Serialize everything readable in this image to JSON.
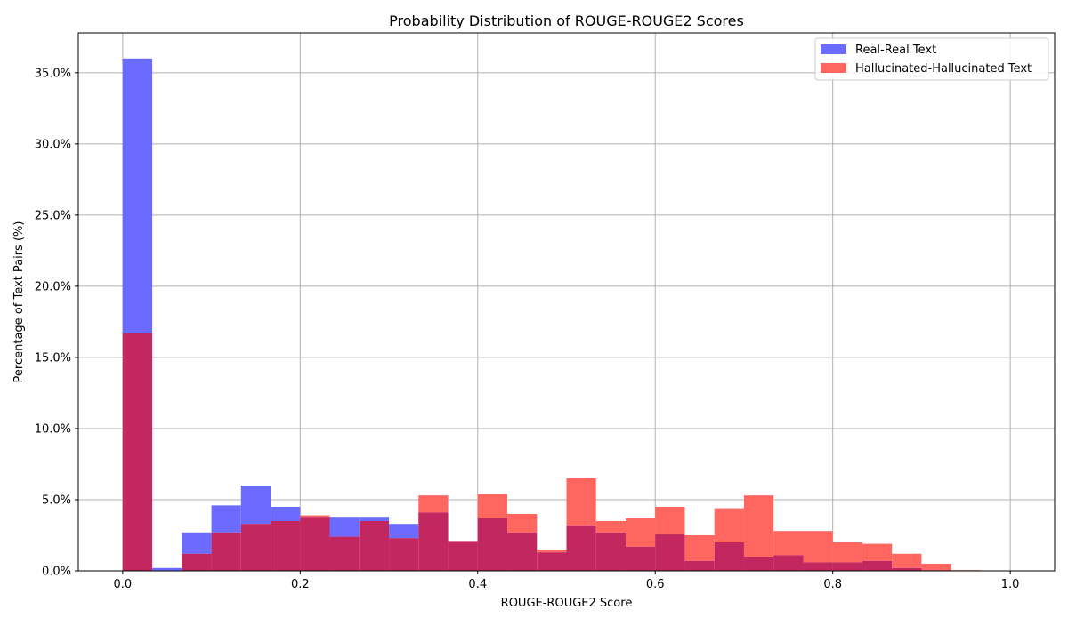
{
  "chart_data": {
    "type": "bar",
    "subtype": "overlapping-histogram",
    "title": "Probability Distribution of ROUGE-ROUGE2 Scores",
    "xlabel": "ROUGE-ROUGE2 Score",
    "ylabel": "Percentage of Text Pairs (%)",
    "xlim": [
      -0.05,
      1.05
    ],
    "ylim": [
      0,
      37.8
    ],
    "grid": true,
    "legend_position": "top-right",
    "bin_edges": [
      0.0,
      0.0333,
      0.0667,
      0.1,
      0.1333,
      0.1667,
      0.2,
      0.2333,
      0.2667,
      0.3,
      0.3333,
      0.3667,
      0.4,
      0.4333,
      0.4667,
      0.5,
      0.5333,
      0.5667,
      0.6,
      0.6333,
      0.6667,
      0.7,
      0.7333,
      0.7667,
      0.8,
      0.8333,
      0.8667,
      0.9,
      0.9333,
      0.9667,
      1.0
    ],
    "x_ticks": [
      {
        "value": 0.0,
        "label": "0.0"
      },
      {
        "value": 0.2,
        "label": "0.2"
      },
      {
        "value": 0.4,
        "label": "0.4"
      },
      {
        "value": 0.6,
        "label": "0.6"
      },
      {
        "value": 0.8,
        "label": "0.8"
      },
      {
        "value": 1.0,
        "label": "1.0"
      }
    ],
    "y_ticks": [
      {
        "value": 0,
        "label": "0.0%"
      },
      {
        "value": 5,
        "label": "5.0%"
      },
      {
        "value": 10,
        "label": "10.0%"
      },
      {
        "value": 15,
        "label": "15.0%"
      },
      {
        "value": 20,
        "label": "20.0%"
      },
      {
        "value": 25,
        "label": "25.0%"
      },
      {
        "value": 30,
        "label": "30.0%"
      },
      {
        "value": 35,
        "label": "35.0%"
      }
    ],
    "series": [
      {
        "name": "Real-Real Text",
        "color": "#6b6bff",
        "values": [
          36.0,
          0.2,
          2.7,
          4.6,
          6.0,
          4.5,
          3.8,
          3.8,
          3.8,
          3.3,
          4.1,
          2.1,
          3.7,
          2.7,
          1.3,
          3.2,
          2.7,
          1.7,
          2.6,
          0.7,
          2.0,
          1.0,
          1.1,
          0.6,
          0.6,
          0.7,
          0.2,
          0.05,
          0.0,
          0.0
        ]
      },
      {
        "name": "Hallucinated-Hallucinated Text",
        "color": "#ff6660",
        "values": [
          16.7,
          0.0,
          1.2,
          2.7,
          3.3,
          3.5,
          3.9,
          2.4,
          3.5,
          2.3,
          5.3,
          2.1,
          5.4,
          4.0,
          1.5,
          6.5,
          3.5,
          3.7,
          4.5,
          2.5,
          4.4,
          5.3,
          2.8,
          2.8,
          2.0,
          1.9,
          1.2,
          0.5,
          0.05,
          0.0
        ]
      }
    ],
    "overlap_color": "#c2275f"
  }
}
